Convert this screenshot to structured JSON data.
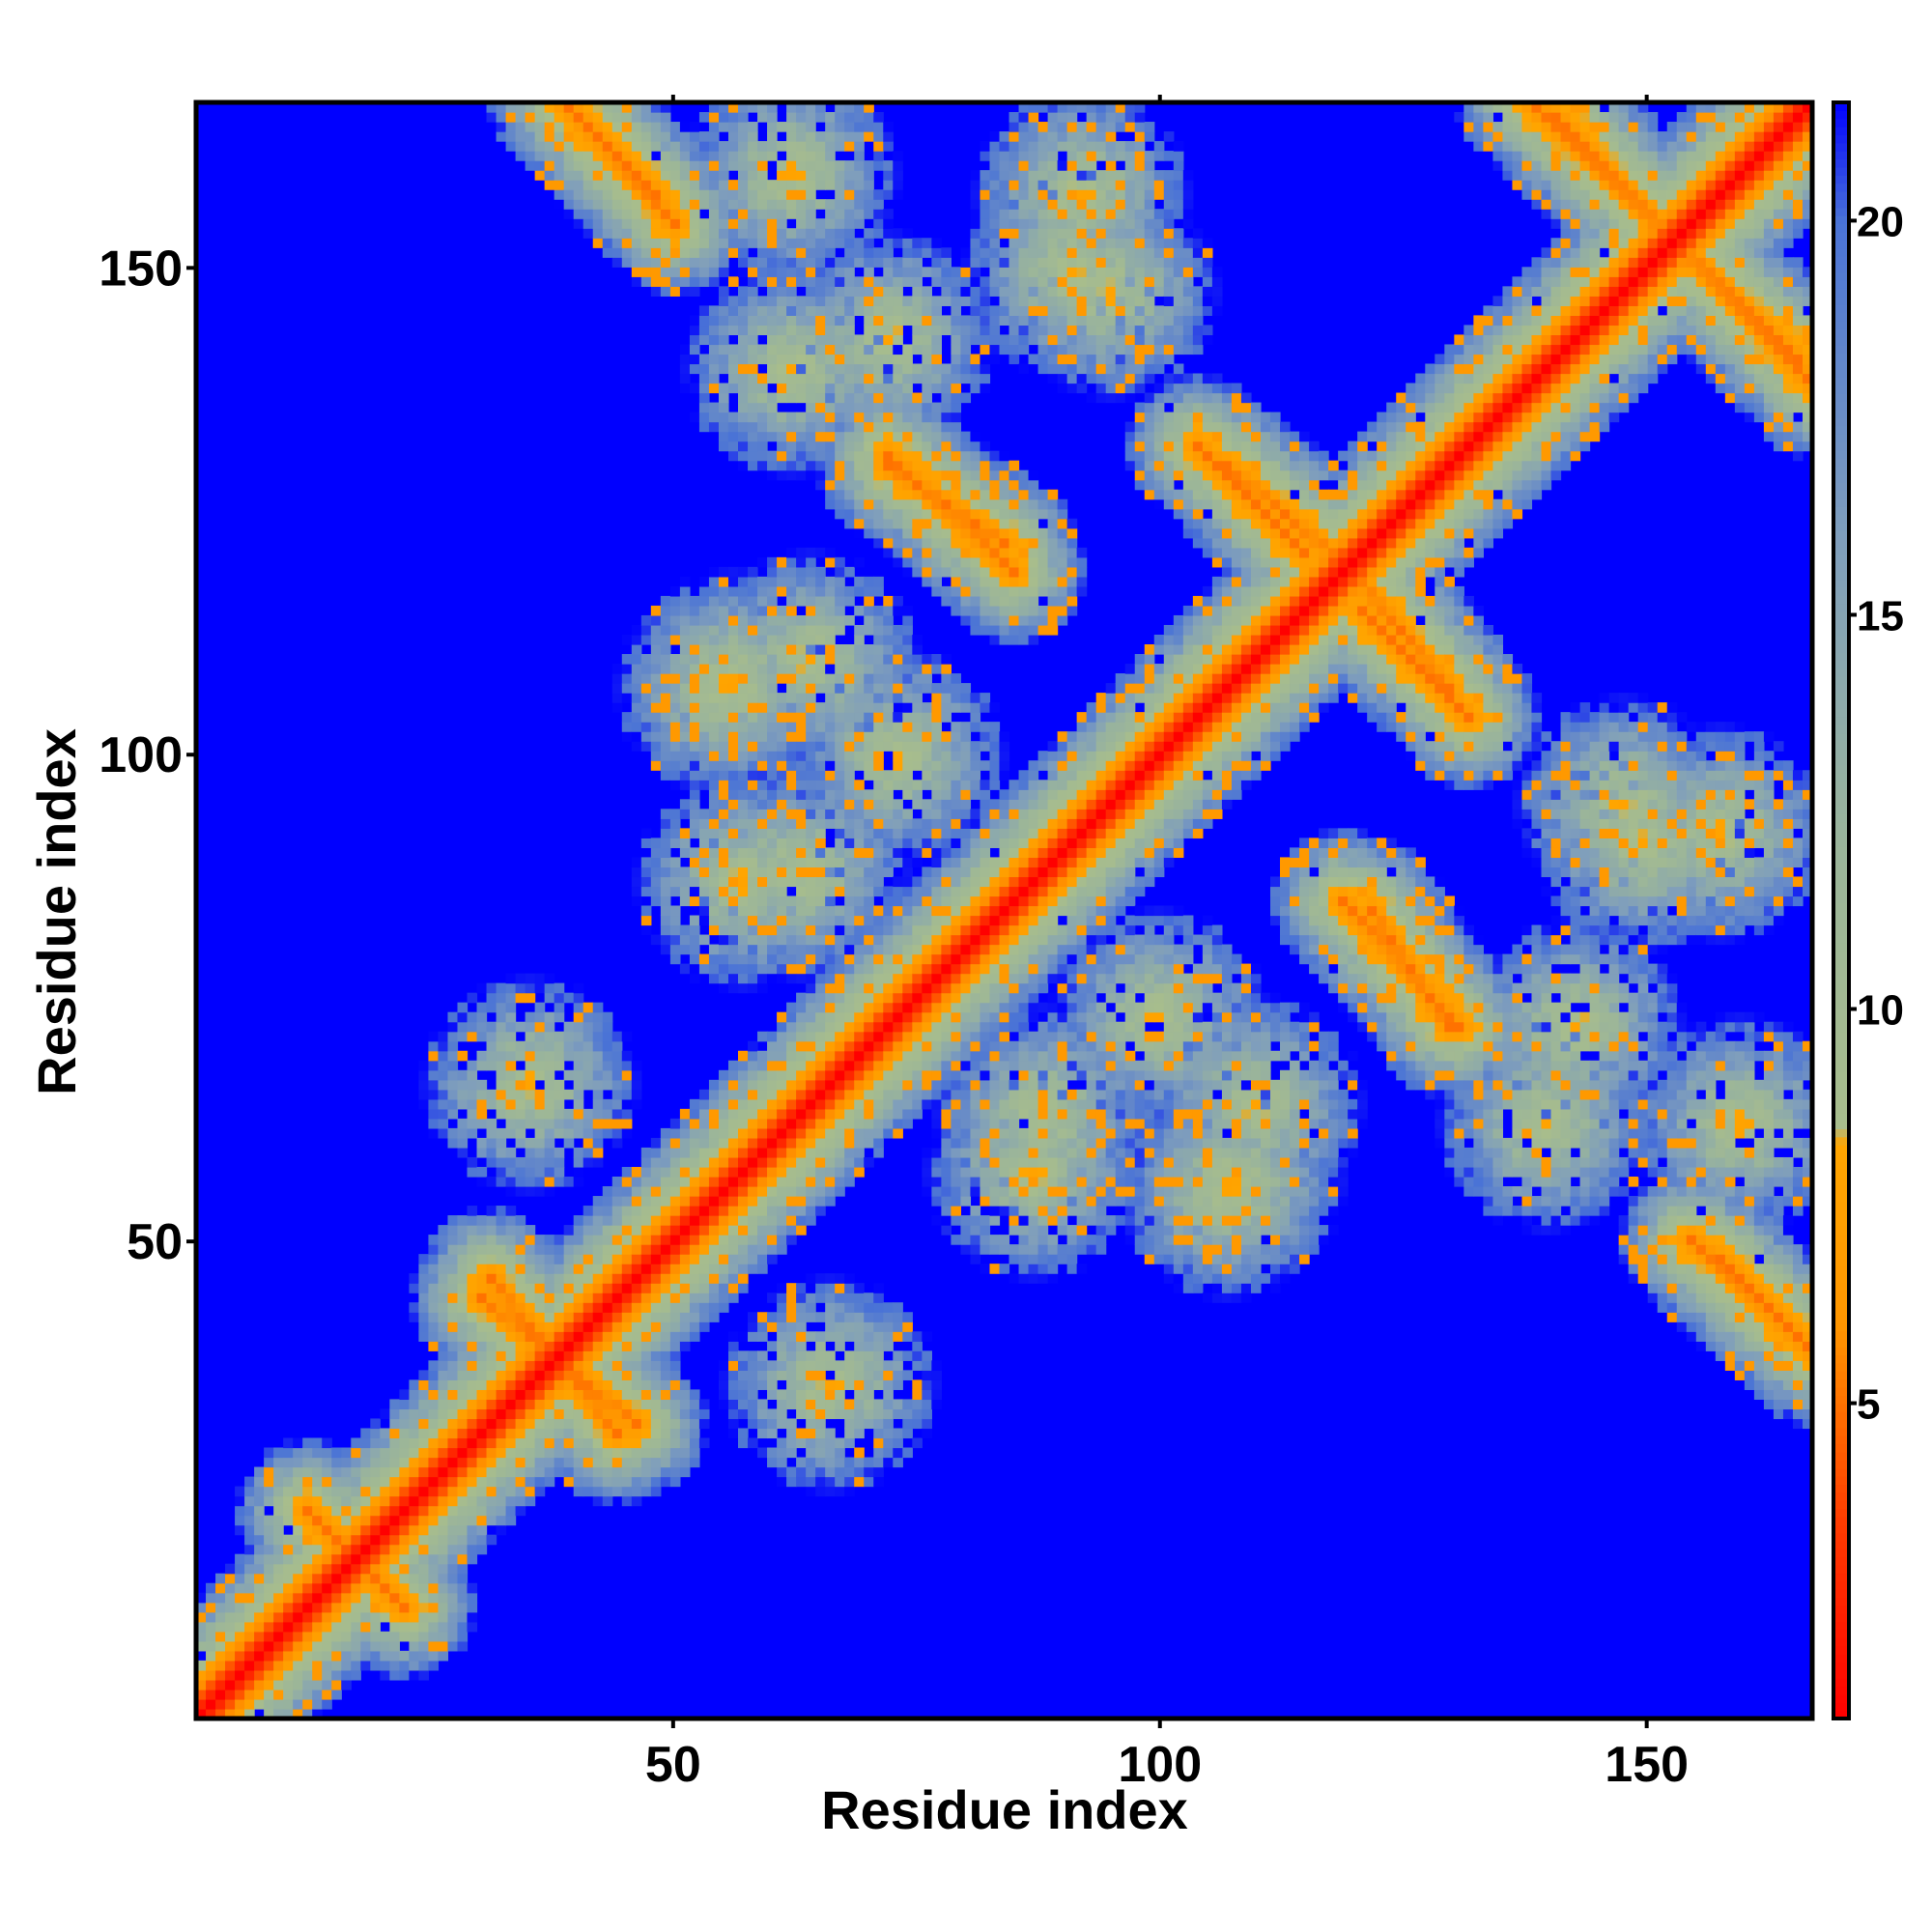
{
  "chart_data": {
    "type": "heatmap",
    "title": "",
    "xlabel": "Residue index",
    "ylabel": "Residue index",
    "n_residues": 167,
    "xlim": [
      1,
      167
    ],
    "ylim": [
      1,
      167
    ],
    "x_ticks": [
      50,
      100,
      150
    ],
    "y_ticks": [
      50,
      100,
      150
    ],
    "colorbar": {
      "range": [
        1,
        21.5
      ],
      "ticks": [
        5,
        10,
        15,
        20
      ],
      "stops": [
        {
          "value": 1,
          "color": "#ff0000"
        },
        {
          "value": 3.5,
          "color": "#ff3c00"
        },
        {
          "value": 6,
          "color": "#ff9600"
        },
        {
          "value": 8.3,
          "color": "#ffa500"
        },
        {
          "value": 8.5,
          "color": "#a8bd8c"
        },
        {
          "value": 12,
          "color": "#9bb59a"
        },
        {
          "value": 16,
          "color": "#7f9ebc"
        },
        {
          "value": 20,
          "color": "#4a73d6"
        },
        {
          "value": 21.5,
          "color": "#0000ff"
        }
      ]
    },
    "background_color": "#0000ff",
    "diagonal_color": "#ff0000",
    "contact_color": "#ffa500",
    "halo_color": "#9bb59a",
    "structural_contacts": [
      {
        "kind": "anti",
        "from": [
          30,
          44
        ],
        "to": [
          46,
          31
        ]
      },
      {
        "kind": "anti",
        "from": [
          38,
          168
        ],
        "to": [
          48,
          158
        ]
      },
      {
        "kind": "anti",
        "from": [
          72,
          130
        ],
        "to": [
          84,
          122
        ]
      },
      {
        "kind": "anti",
        "from": [
          107,
          130
        ],
        "to": [
          119,
          120
        ]
      },
      {
        "kind": "anti",
        "from": [
          121,
          115
        ],
        "to": [
          132,
          104
        ]
      },
      {
        "kind": "anti",
        "from": [
          119,
          85
        ],
        "to": [
          131,
          72
        ]
      },
      {
        "kind": "anti",
        "from": [
          138,
          168
        ],
        "to": [
          166,
          141
        ]
      },
      {
        "kind": "anti",
        "from": [
          155,
          50
        ],
        "to": [
          167,
          39
        ]
      },
      {
        "kind": "par",
        "from": [
          12,
          22
        ],
        "to": [
          22,
          12
        ]
      },
      {
        "kind": "blob",
        "center": [
          62,
          140
        ],
        "r": 6
      },
      {
        "kind": "blob",
        "center": [
          91,
          150
        ],
        "r": 6
      },
      {
        "kind": "blob",
        "center": [
          56,
          108
        ],
        "r": 8
      },
      {
        "kind": "blob",
        "center": [
          63,
          88
        ],
        "r": 8
      },
      {
        "kind": "blob",
        "center": [
          100,
          73
        ],
        "r": 8
      },
      {
        "kind": "blob",
        "center": [
          87,
          57
        ],
        "r": 8
      },
      {
        "kind": "blob",
        "center": [
          107,
          55
        ],
        "r": 7
      },
      {
        "kind": "blob",
        "center": [
          148,
          95
        ],
        "r": 7
      },
      {
        "kind": "blob",
        "center": [
          158,
          92
        ],
        "r": 6
      },
      {
        "kind": "blob",
        "center": [
          143,
          72
        ],
        "r": 6
      },
      {
        "kind": "blob",
        "center": [
          64,
          110
        ],
        "r": 6
      },
      {
        "kind": "blob",
        "center": [
          35,
          66
        ],
        "r": 6
      },
      {
        "kind": "blob",
        "center": [
          160,
          62
        ],
        "r": 6
      }
    ]
  }
}
